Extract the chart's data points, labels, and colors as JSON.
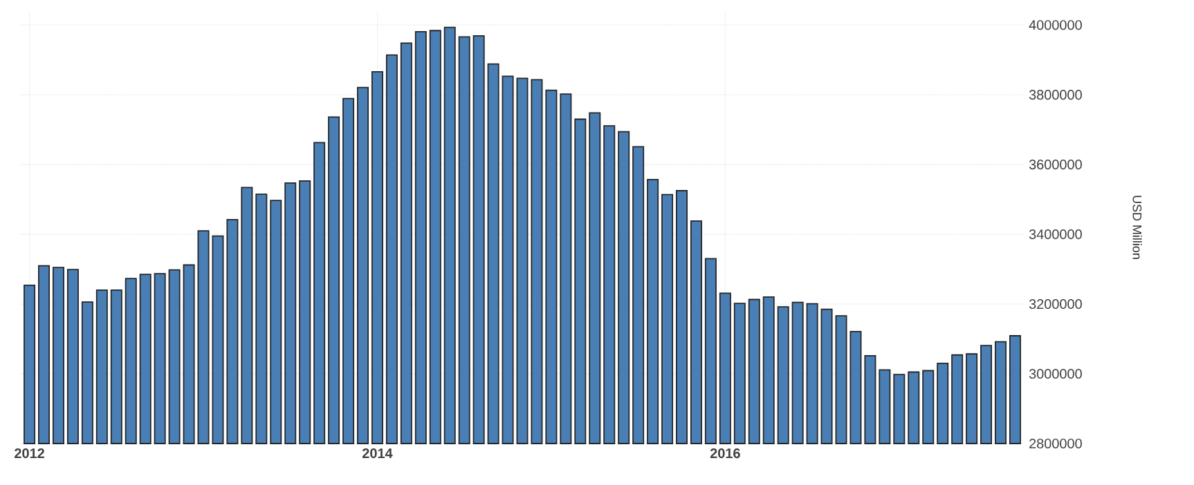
{
  "chart_data": {
    "type": "bar",
    "ylabel": "USD Million",
    "categories": [
      "2012",
      null,
      null,
      null,
      null,
      null,
      null,
      null,
      null,
      null,
      null,
      null,
      null,
      null,
      null,
      null,
      null,
      null,
      null,
      null,
      null,
      null,
      null,
      null,
      "2014",
      null,
      null,
      null,
      null,
      null,
      null,
      null,
      null,
      null,
      null,
      null,
      null,
      null,
      null,
      null,
      null,
      null,
      null,
      null,
      null,
      null,
      null,
      null,
      "2016",
      null,
      null,
      null,
      null,
      null,
      null,
      null,
      null,
      null,
      null,
      null,
      null,
      null,
      null,
      null,
      null,
      null,
      null,
      null,
      null
    ],
    "values": [
      3254000,
      3310000,
      3305000,
      3299000,
      3206000,
      3240000,
      3240000,
      3273000,
      3285000,
      3287000,
      3298000,
      3312000,
      3410000,
      3395000,
      3442000,
      3534000,
      3515000,
      3497000,
      3547000,
      3553000,
      3663000,
      3736000,
      3789000,
      3821000,
      3866000,
      3914000,
      3948000,
      3981000,
      3984000,
      3993000,
      3966000,
      3969000,
      3888000,
      3853000,
      3847000,
      3843000,
      3813000,
      3802000,
      3730000,
      3748000,
      3711000,
      3694000,
      3651000,
      3557000,
      3514000,
      3525000,
      3438000,
      3330000,
      3231000,
      3202000,
      3213000,
      3220000,
      3192000,
      3205000,
      3201000,
      3185000,
      3166000,
      3121000,
      3052000,
      3011000,
      2998000,
      3005000,
      3009000,
      3030000,
      3054000,
      3057000,
      3081000,
      3092000,
      3109000
    ],
    "color": "#4a7fb5",
    "ylim": [
      2800000,
      4040000
    ],
    "yticks": [
      2800000,
      3000000,
      3200000,
      3400000,
      3600000,
      3800000,
      4000000
    ],
    "grid": true
  }
}
